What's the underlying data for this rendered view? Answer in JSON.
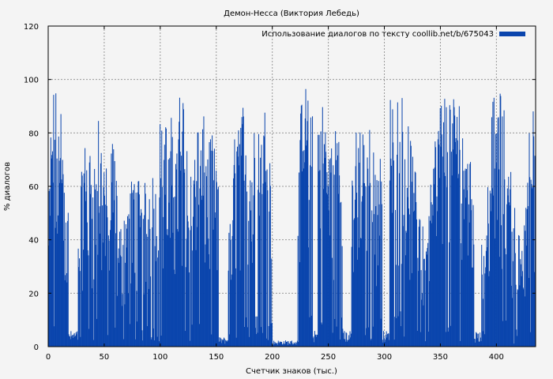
{
  "chart_data": {
    "type": "bar",
    "title": "Демон-Несса (Виктория Лебедь)",
    "xlabel": "Счетчик знаков (тыс.)",
    "ylabel": "% диалогов",
    "xlim": [
      0,
      435
    ],
    "ylim": [
      0,
      120
    ],
    "xticks": [
      0,
      50,
      100,
      150,
      200,
      250,
      300,
      350,
      400
    ],
    "yticks": [
      0,
      20,
      40,
      60,
      80,
      100,
      120
    ],
    "grid": true,
    "legend_position": "top-right",
    "series": [
      {
        "name": "Использование диалогов по тексту coollib.net/b/675043",
        "color": "#0a45ad",
        "envelope": [
          {
            "x": 0,
            "y": 50
          },
          {
            "x": 3,
            "y": 100
          },
          {
            "x": 8,
            "y": 99
          },
          {
            "x": 14,
            "y": 85
          },
          {
            "x": 20,
            "y": 30
          },
          {
            "x": 24,
            "y": 5
          },
          {
            "x": 28,
            "y": 60
          },
          {
            "x": 34,
            "y": 82
          },
          {
            "x": 40,
            "y": 70
          },
          {
            "x": 44,
            "y": 86
          },
          {
            "x": 48,
            "y": 80
          },
          {
            "x": 54,
            "y": 60
          },
          {
            "x": 58,
            "y": 85
          },
          {
            "x": 62,
            "y": 50
          },
          {
            "x": 66,
            "y": 45
          },
          {
            "x": 72,
            "y": 60
          },
          {
            "x": 78,
            "y": 70
          },
          {
            "x": 84,
            "y": 60
          },
          {
            "x": 90,
            "y": 65
          },
          {
            "x": 96,
            "y": 65
          },
          {
            "x": 100,
            "y": 88
          },
          {
            "x": 106,
            "y": 85
          },
          {
            "x": 112,
            "y": 88
          },
          {
            "x": 116,
            "y": 95
          },
          {
            "x": 121,
            "y": 98
          },
          {
            "x": 126,
            "y": 60
          },
          {
            "x": 130,
            "y": 85
          },
          {
            "x": 136,
            "y": 85
          },
          {
            "x": 142,
            "y": 88
          },
          {
            "x": 148,
            "y": 75
          },
          {
            "x": 152,
            "y": 65
          },
          {
            "x": 156,
            "y": 5
          },
          {
            "x": 160,
            "y": 40
          },
          {
            "x": 164,
            "y": 60
          },
          {
            "x": 168,
            "y": 97
          },
          {
            "x": 172,
            "y": 90
          },
          {
            "x": 176,
            "y": 98
          },
          {
            "x": 180,
            "y": 70
          },
          {
            "x": 186,
            "y": 90
          },
          {
            "x": 190,
            "y": 80
          },
          {
            "x": 194,
            "y": 95
          },
          {
            "x": 200,
            "y": 75
          },
          {
            "x": 203,
            "y": 20
          },
          {
            "x": 206,
            "y": 0
          },
          {
            "x": 210,
            "y": 10
          },
          {
            "x": 214,
            "y": 8
          },
          {
            "x": 218,
            "y": 30
          },
          {
            "x": 222,
            "y": 60
          },
          {
            "x": 226,
            "y": 98
          },
          {
            "x": 232,
            "y": 99
          },
          {
            "x": 238,
            "y": 98
          },
          {
            "x": 243,
            "y": 99
          },
          {
            "x": 248,
            "y": 85
          },
          {
            "x": 253,
            "y": 80
          },
          {
            "x": 258,
            "y": 90
          },
          {
            "x": 263,
            "y": 80
          },
          {
            "x": 268,
            "y": 60
          },
          {
            "x": 272,
            "y": 80
          },
          {
            "x": 277,
            "y": 88
          },
          {
            "x": 282,
            "y": 80
          },
          {
            "x": 287,
            "y": 90
          },
          {
            "x": 292,
            "y": 70
          },
          {
            "x": 296,
            "y": 80
          },
          {
            "x": 300,
            "y": 85
          },
          {
            "x": 305,
            "y": 95
          },
          {
            "x": 310,
            "y": 99
          },
          {
            "x": 315,
            "y": 99
          },
          {
            "x": 320,
            "y": 85
          },
          {
            "x": 325,
            "y": 75
          },
          {
            "x": 330,
            "y": 68
          },
          {
            "x": 335,
            "y": 40
          },
          {
            "x": 340,
            "y": 65
          },
          {
            "x": 345,
            "y": 80
          },
          {
            "x": 350,
            "y": 99
          },
          {
            "x": 355,
            "y": 99
          },
          {
            "x": 360,
            "y": 95
          },
          {
            "x": 366,
            "y": 98
          },
          {
            "x": 372,
            "y": 85
          },
          {
            "x": 377,
            "y": 90
          },
          {
            "x": 382,
            "y": 70
          },
          {
            "x": 386,
            "y": 50
          },
          {
            "x": 390,
            "y": 40
          },
          {
            "x": 394,
            "y": 85
          },
          {
            "x": 399,
            "y": 99
          },
          {
            "x": 404,
            "y": 95
          },
          {
            "x": 410,
            "y": 85
          },
          {
            "x": 414,
            "y": 60
          },
          {
            "x": 418,
            "y": 50
          },
          {
            "x": 422,
            "y": 35
          },
          {
            "x": 426,
            "y": 60
          },
          {
            "x": 430,
            "y": 95
          },
          {
            "x": 435,
            "y": 85
          }
        ],
        "low_regions": [
          {
            "from": 18,
            "to": 26,
            "y": 5
          },
          {
            "from": 152,
            "to": 160,
            "y": 3
          },
          {
            "from": 200,
            "to": 222,
            "y": 2
          },
          {
            "from": 236,
            "to": 240,
            "y": 5
          },
          {
            "from": 264,
            "to": 270,
            "y": 5
          },
          {
            "from": 298,
            "to": 304,
            "y": 5
          },
          {
            "from": 380,
            "to": 386,
            "y": 5
          }
        ]
      }
    ]
  }
}
